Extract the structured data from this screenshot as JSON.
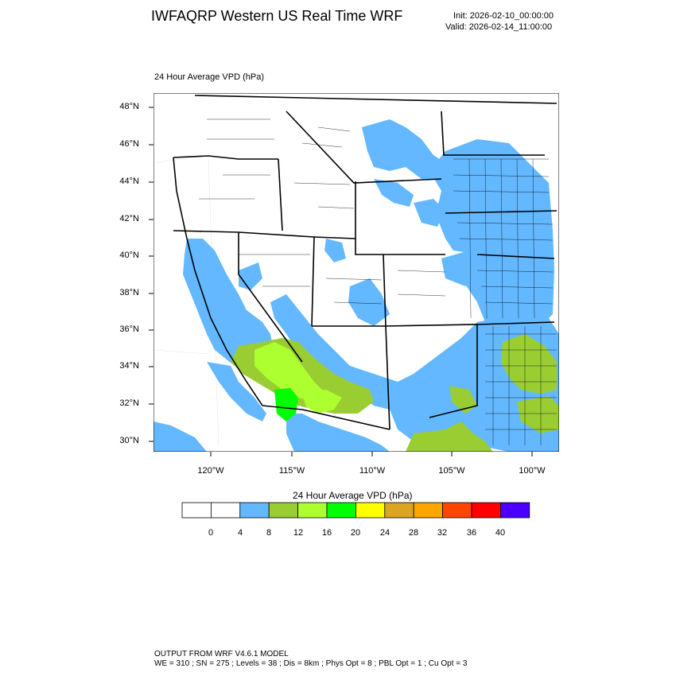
{
  "header": {
    "title": "IWFAQRP Western US Real Time WRF",
    "init": "Init: 2026-02-10_00:00:00",
    "valid": "Valid: 2026-02-14_11:00:00"
  },
  "field": {
    "label": "24 Hour Average VPD   (hPa)"
  },
  "map": {
    "lat_labels": [
      "48°N",
      "46°N",
      "44°N",
      "42°N",
      "40°N",
      "38°N",
      "36°N",
      "34°N",
      "32°N",
      "30°N"
    ],
    "lon_labels": [
      "120°W",
      "115°W",
      "110°W",
      "105°W",
      "100°W"
    ],
    "lat_range": [
      29.5,
      48.8
    ],
    "lon_range": [
      -123.6,
      -98.4
    ]
  },
  "colorbar": {
    "title": "24 Hour Average VPD  (hPa)",
    "colors": [
      "#ffffff",
      "#ffffff",
      "#63b8ff",
      "#9acd32",
      "#adff2f",
      "#00ff00",
      "#ffff00",
      "#daa520",
      "#ffa500",
      "#ff4500",
      "#ff0000",
      "#4b00ff"
    ],
    "ticks": [
      "0",
      "4",
      "8",
      "12",
      "16",
      "20",
      "24",
      "28",
      "32",
      "36",
      "40"
    ]
  },
  "footer": {
    "line1": "OUTPUT FROM WRF V4.6.1 MODEL",
    "line2": "WE = 310 ; SN = 275 ; Levels = 38 ; Dis = 8km ; Phys Opt = 8 ; PBL Opt = 1 ; Cu Opt = 3"
  }
}
